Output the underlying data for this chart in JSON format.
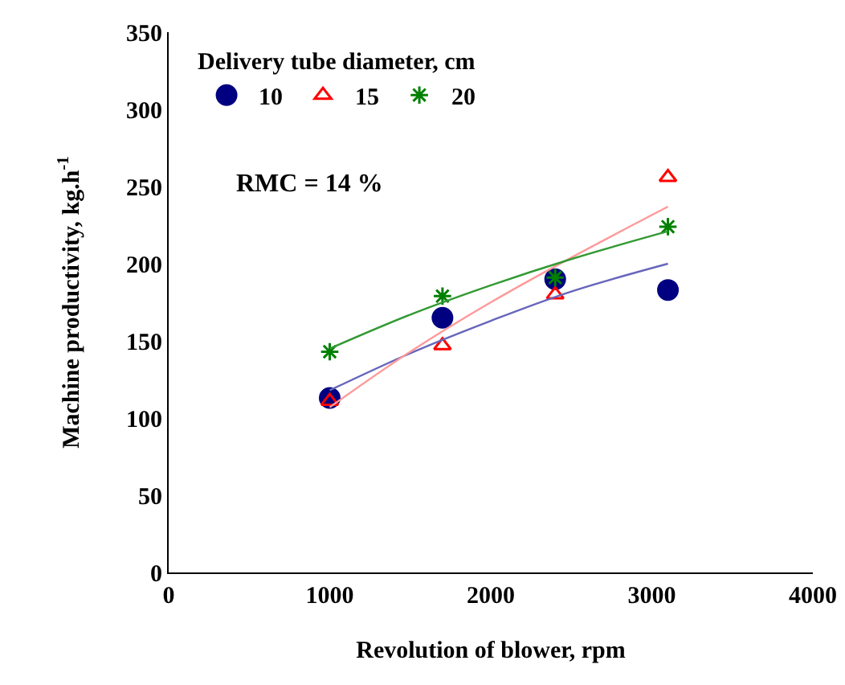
{
  "chart_data": {
    "type": "scatter",
    "xlabel": "Revolution of blower, rpm",
    "ylabel": "Machine productivity, kg.h$^{-1}$",
    "legend_title": "Delivery tube diameter, cm",
    "legend": "top left",
    "grid": false,
    "xlim": [
      0,
      4000
    ],
    "xticks": [
      0,
      1000,
      2000,
      3000,
      4000
    ],
    "ylim": [
      0,
      350
    ],
    "yticks": [
      0,
      50,
      100,
      150,
      200,
      250,
      300,
      350
    ],
    "x": [
      1000,
      1700,
      2400,
      3100
    ],
    "series": [
      {
        "name": "10",
        "color": "#000080",
        "marker": "circle",
        "values": [
          113,
          165,
          190,
          183
        ]
      },
      {
        "name": "15",
        "color": "#ff0000",
        "marker": "triangle",
        "values": [
          111,
          147,
          180,
          256
        ]
      },
      {
        "name": "20",
        "color": "#008000",
        "marker": "cross",
        "values": [
          143,
          179,
          191,
          224
        ]
      },
      {
        "type": "line",
        "color": "#6666bb",
        "x": [
          1000,
          1500,
          2000,
          2500,
          3100
        ],
        "values": [
          118,
          142,
          163,
          182,
          200
        ]
      },
      {
        "type": "line",
        "color": "#ff9999",
        "x": [
          1000,
          1500,
          2000,
          2500,
          3100
        ],
        "values": [
          107,
          143,
          175,
          204,
          237
        ]
      },
      {
        "type": "line",
        "color": "#339933",
        "x": [
          1000,
          1500,
          2000,
          2500,
          3100
        ],
        "values": [
          145,
          167,
          186,
          203,
          221
        ]
      }
    ],
    "annotations": [
      "RMC = 14 %"
    ]
  }
}
